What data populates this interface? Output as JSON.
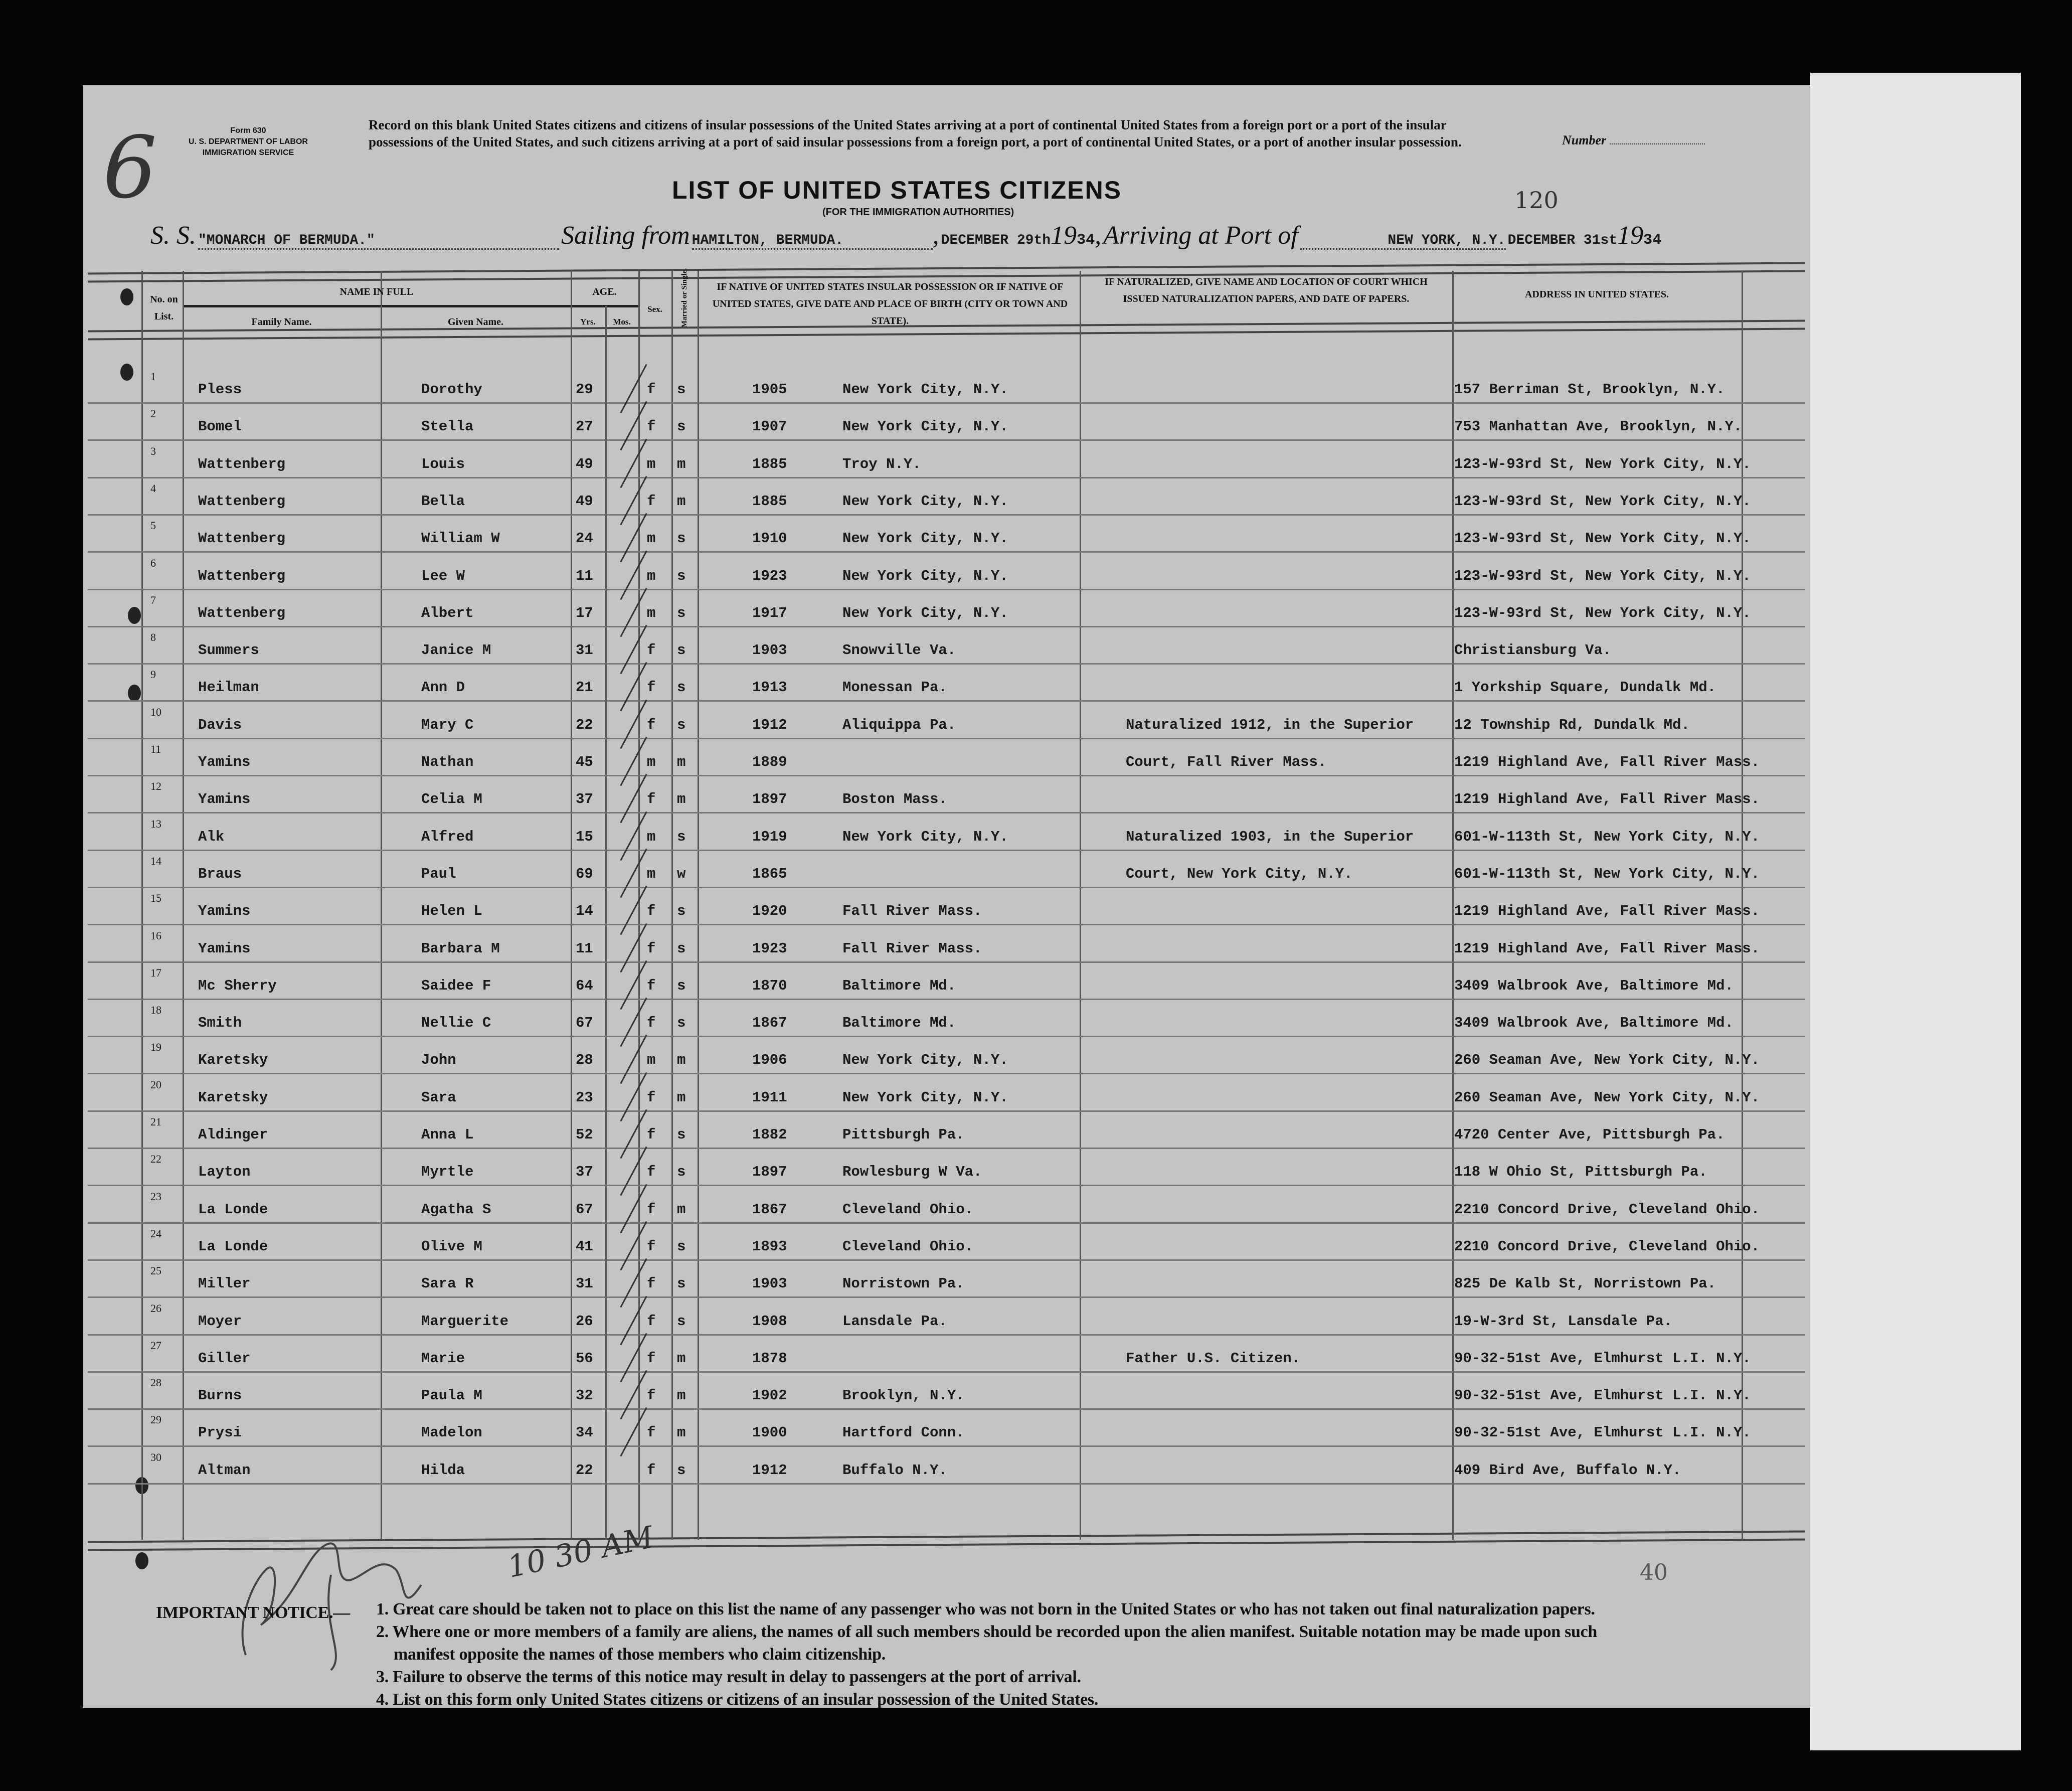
{
  "form": {
    "form_number": "Form 630",
    "department": "U. S. DEPARTMENT OF LABOR",
    "service": "IMMIGRATION SERVICE",
    "record_instructions": "Record on this blank United States citizens and citizens of insular possessions of the United States arriving at a port of continental United States from a foreign port or a port of the insular possessions of the United States, and such citizens arriving at a port of said insular possessions from a foreign port, a port of continental United States, or a port of another insular possession.",
    "number_label": "Number",
    "title": "LIST OF UNITED STATES CITIZENS",
    "subtitle": "(FOR THE IMMIGRATION AUTHORITIES)",
    "page_mark": "120",
    "sheet_mark": "6",
    "bottom_mark": "40",
    "time_mark": "10 30 AM"
  },
  "voyage": {
    "ss_label": "S. S.",
    "ship": "\"MONARCH OF BERMUDA.\"",
    "sailing_label": "Sailing from",
    "sailing_port": "HAMILTON, BERMUDA.",
    "sailing_date": "DECEMBER 29th",
    "year_prefix": "19",
    "sailing_year": "34",
    "arriving_label": "Arriving at Port of",
    "arrival_port": "NEW YORK, N.Y.",
    "arrival_date": "DECEMBER 31st",
    "arrival_year": "34"
  },
  "columns": {
    "no": "No. on List.",
    "name_in_full": "NAME IN FULL",
    "family_name": "Family Name.",
    "given_name": "Given Name.",
    "age": "AGE.",
    "yrs": "Yrs.",
    "mos": "Mos.",
    "sex": "Sex.",
    "marital": "Married or Single.",
    "birth": "IF NATIVE OF UNITED STATES INSULAR POSSESSION OR IF NATIVE OF UNITED STATES, GIVE DATE AND PLACE OF BIRTH (CITY OR TOWN AND STATE).",
    "naturalization": "IF NATURALIZED, GIVE NAME AND LOCATION OF COURT WHICH ISSUED NATURALIZATION PAPERS, AND DATE OF PAPERS.",
    "address": "ADDRESS IN UNITED STATES."
  },
  "rows": [
    {
      "no": "1",
      "family": "Pless",
      "given": "Dorothy",
      "yrs": "29",
      "sex": "f",
      "marital": "s",
      "birth_year": "1905",
      "birth_place": "New York City, N.Y.",
      "naturalization": "",
      "address": "157 Berriman St, Brooklyn, N.Y."
    },
    {
      "no": "2",
      "family": "Bomel",
      "given": "Stella",
      "yrs": "27",
      "sex": "f",
      "marital": "s",
      "birth_year": "1907",
      "birth_place": "New York City, N.Y.",
      "naturalization": "",
      "address": "753 Manhattan Ave, Brooklyn, N.Y."
    },
    {
      "no": "3",
      "family": "Wattenberg",
      "given": "Louis",
      "yrs": "49",
      "sex": "m",
      "marital": "m",
      "birth_year": "1885",
      "birth_place": "Troy N.Y.",
      "naturalization": "",
      "address": "123-W-93rd St, New York City, N.Y."
    },
    {
      "no": "4",
      "family": "Wattenberg",
      "given": "Bella",
      "yrs": "49",
      "sex": "f",
      "marital": "m",
      "birth_year": "1885",
      "birth_place": "New York City, N.Y.",
      "naturalization": "",
      "address": "123-W-93rd St, New York City, N.Y."
    },
    {
      "no": "5",
      "family": "Wattenberg",
      "given": "William W",
      "yrs": "24",
      "sex": "m",
      "marital": "s",
      "birth_year": "1910",
      "birth_place": "New York City, N.Y.",
      "naturalization": "",
      "address": "123-W-93rd St, New York City, N.Y."
    },
    {
      "no": "6",
      "family": "Wattenberg",
      "given": "Lee W",
      "yrs": "11",
      "sex": "m",
      "marital": "s",
      "birth_year": "1923",
      "birth_place": "New York City, N.Y.",
      "naturalization": "",
      "address": "123-W-93rd St, New York City, N.Y."
    },
    {
      "no": "7",
      "family": "Wattenberg",
      "given": "Albert",
      "yrs": "17",
      "sex": "m",
      "marital": "s",
      "birth_year": "1917",
      "birth_place": "New York City, N.Y.",
      "naturalization": "",
      "address": "123-W-93rd St, New York City, N.Y."
    },
    {
      "no": "8",
      "family": "Summers",
      "given": "Janice M",
      "yrs": "31",
      "sex": "f",
      "marital": "s",
      "birth_year": "1903",
      "birth_place": "Snowville Va.",
      "naturalization": "",
      "address": "Christiansburg Va."
    },
    {
      "no": "9",
      "family": "Heilman",
      "given": "Ann D",
      "yrs": "21",
      "sex": "f",
      "marital": "s",
      "birth_year": "1913",
      "birth_place": "Monessan Pa.",
      "naturalization": "",
      "address": "1 Yorkship Square, Dundalk Md."
    },
    {
      "no": "10",
      "family": "Davis",
      "given": "Mary C",
      "yrs": "22",
      "sex": "f",
      "marital": "s",
      "birth_year": "1912",
      "birth_place": "Aliquippa Pa.",
      "naturalization": "Naturalized 1912, in the Superior",
      "address": "12 Township Rd, Dundalk Md."
    },
    {
      "no": "11",
      "family": "Yamins",
      "given": "Nathan",
      "yrs": "45",
      "sex": "m",
      "marital": "m",
      "birth_year": "1889",
      "birth_place": "",
      "naturalization": "Court, Fall River Mass.",
      "address": "1219 Highland Ave, Fall River Mass."
    },
    {
      "no": "12",
      "family": "Yamins",
      "given": "Celia M",
      "yrs": "37",
      "sex": "f",
      "marital": "m",
      "birth_year": "1897",
      "birth_place": "Boston Mass.",
      "naturalization": "",
      "address": "1219 Highland Ave, Fall River Mass."
    },
    {
      "no": "13",
      "family": "Alk",
      "given": "Alfred",
      "yrs": "15",
      "sex": "m",
      "marital": "s",
      "birth_year": "1919",
      "birth_place": "New York City, N.Y.",
      "naturalization": "Naturalized 1903, in the Superior",
      "address": "601-W-113th St, New York City, N.Y."
    },
    {
      "no": "14",
      "family": "Braus",
      "given": "Paul",
      "yrs": "69",
      "sex": "m",
      "marital": "w",
      "birth_year": "1865",
      "birth_place": "",
      "naturalization": "Court, New York City, N.Y.",
      "address": "601-W-113th St, New York City, N.Y."
    },
    {
      "no": "15",
      "family": "Yamins",
      "given": "Helen L",
      "yrs": "14",
      "sex": "f",
      "marital": "s",
      "birth_year": "1920",
      "birth_place": "Fall River Mass.",
      "naturalization": "",
      "address": "1219 Highland Ave, Fall River Mass."
    },
    {
      "no": "16",
      "family": "Yamins",
      "given": "Barbara M",
      "yrs": "11",
      "sex": "f",
      "marital": "s",
      "birth_year": "1923",
      "birth_place": "Fall River Mass.",
      "naturalization": "",
      "address": "1219 Highland Ave, Fall River Mass."
    },
    {
      "no": "17",
      "family": "Mc Sherry",
      "given": "Saidee F",
      "yrs": "64",
      "sex": "f",
      "marital": "s",
      "birth_year": "1870",
      "birth_place": "Baltimore Md.",
      "naturalization": "",
      "address": "3409 Walbrook Ave, Baltimore Md."
    },
    {
      "no": "18",
      "family": "Smith",
      "given": "Nellie C",
      "yrs": "67",
      "sex": "f",
      "marital": "s",
      "birth_year": "1867",
      "birth_place": "Baltimore Md.",
      "naturalization": "",
      "address": "3409 Walbrook Ave, Baltimore Md."
    },
    {
      "no": "19",
      "family": "Karetsky",
      "given": "John",
      "yrs": "28",
      "sex": "m",
      "marital": "m",
      "birth_year": "1906",
      "birth_place": "New York City, N.Y.",
      "naturalization": "",
      "address": "260 Seaman Ave, New York City, N.Y."
    },
    {
      "no": "20",
      "family": "Karetsky",
      "given": "Sara",
      "yrs": "23",
      "sex": "f",
      "marital": "m",
      "birth_year": "1911",
      "birth_place": "New York City, N.Y.",
      "naturalization": "",
      "address": "260 Seaman Ave, New York City, N.Y."
    },
    {
      "no": "21",
      "family": "Aldinger",
      "given": "Anna L",
      "yrs": "52",
      "sex": "f",
      "marital": "s",
      "birth_year": "1882",
      "birth_place": "Pittsburgh Pa.",
      "naturalization": "",
      "address": "4720 Center Ave, Pittsburgh Pa."
    },
    {
      "no": "22",
      "family": "Layton",
      "given": "Myrtle",
      "yrs": "37",
      "sex": "f",
      "marital": "s",
      "birth_year": "1897",
      "birth_place": "Rowlesburg W Va.",
      "naturalization": "",
      "address": "118 W Ohio St, Pittsburgh Pa."
    },
    {
      "no": "23",
      "family": "La Londe",
      "given": "Agatha S",
      "yrs": "67",
      "sex": "f",
      "marital": "m",
      "birth_year": "1867",
      "birth_place": "Cleveland Ohio.",
      "naturalization": "",
      "address": "2210 Concord Drive, Cleveland Ohio."
    },
    {
      "no": "24",
      "family": "La Londe",
      "given": "Olive M",
      "yrs": "41",
      "sex": "f",
      "marital": "s",
      "birth_year": "1893",
      "birth_place": "Cleveland Ohio.",
      "naturalization": "",
      "address": "2210 Concord Drive, Cleveland Ohio."
    },
    {
      "no": "25",
      "family": "Miller",
      "given": "Sara R",
      "yrs": "31",
      "sex": "f",
      "marital": "s",
      "birth_year": "1903",
      "birth_place": "Norristown Pa.",
      "naturalization": "",
      "address": "825 De Kalb St, Norristown Pa."
    },
    {
      "no": "26",
      "family": "Moyer",
      "given": "Marguerite",
      "yrs": "26",
      "sex": "f",
      "marital": "s",
      "birth_year": "1908",
      "birth_place": "Lansdale Pa.",
      "naturalization": "",
      "address": "19-W-3rd St, Lansdale Pa."
    },
    {
      "no": "27",
      "family": "Giller",
      "given": "Marie",
      "yrs": "56",
      "sex": "f",
      "marital": "m",
      "birth_year": "1878",
      "birth_place": "",
      "naturalization": "Father U.S. Citizen.",
      "address": "90-32-51st Ave, Elmhurst L.I. N.Y."
    },
    {
      "no": "28",
      "family": "Burns",
      "given": "Paula M",
      "yrs": "32",
      "sex": "f",
      "marital": "m",
      "birth_year": "1902",
      "birth_place": "Brooklyn, N.Y.",
      "naturalization": "",
      "address": "90-32-51st Ave, Elmhurst L.I. N.Y."
    },
    {
      "no": "29",
      "family": "Prysi",
      "given": "Madelon",
      "yrs": "34",
      "sex": "f",
      "marital": "m",
      "birth_year": "1900",
      "birth_place": "Hartford Conn.",
      "naturalization": "",
      "address": "90-32-51st Ave, Elmhurst L.I. N.Y."
    },
    {
      "no": "30",
      "family": "Altman",
      "given": "Hilda",
      "yrs": "22",
      "sex": "f",
      "marital": "s",
      "birth_year": "1912",
      "birth_place": "Buffalo N.Y.",
      "naturalization": "",
      "address": "409 Bird Ave, Buffalo N.Y."
    }
  ],
  "notice": {
    "label": "IMPORTANT NOTICE.—",
    "items": [
      "1. Great care should be taken not to place on this list the name of any passenger who was not born in the United States or who has not taken out final naturalization papers.",
      "2. Where one or more members of a family are aliens, the names of all such members should be recorded upon the alien manifest.  Suitable notation may be made upon such",
      "manifest opposite the names of those members who claim citizenship.",
      "3. Failure to observe the terms of this notice may result in delay to passengers at the port of arrival.",
      "4. List on this form only United States citizens or citizens of an insular possession of the United States."
    ]
  }
}
